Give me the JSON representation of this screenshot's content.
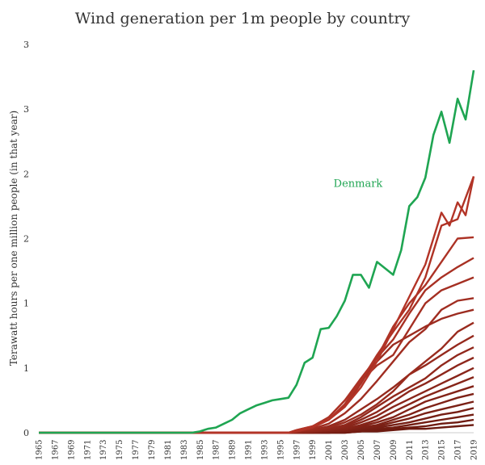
{
  "chart_data": {
    "type": "line",
    "title": "Wind generation per 1m people by country",
    "xlabel": "",
    "ylabel": "Terawatt hours per one million people (in that year)",
    "x_ticks": [
      "1965",
      "1967",
      "1969",
      "1971",
      "1973",
      "1975",
      "1977",
      "1979",
      "1981",
      "1983",
      "1985",
      "1987",
      "1989",
      "1991",
      "1993",
      "1995",
      "1997",
      "1999",
      "2001",
      "2003",
      "2005",
      "2007",
      "2009",
      "2011",
      "2013",
      "2015",
      "2017",
      "2019"
    ],
    "y_ticks": [
      "0",
      "1",
      "1",
      "2",
      "2",
      "3",
      "3"
    ],
    "xlim": [
      1965,
      2019
    ],
    "ylim": [
      0,
      3.0
    ],
    "grid": false,
    "legend": "none",
    "annotations": [
      {
        "text": "Denmark",
        "series": "Denmark"
      }
    ],
    "colors": {
      "highlight": "#1fa552",
      "others_dark": "#6b1a10",
      "others_light": "#c0392b"
    },
    "series": [
      {
        "name": "Denmark",
        "x": [
          1985,
          1986,
          1987,
          1988,
          1989,
          1990,
          1991,
          1992,
          1993,
          1994,
          1995,
          1996,
          1997,
          1998,
          1999,
          2000,
          2001,
          2002,
          2003,
          2004,
          2005,
          2006,
          2007,
          2008,
          2009,
          2010,
          2011,
          2012,
          2013,
          2014,
          2015,
          2016,
          2017,
          2018,
          2019
        ],
        "values": [
          0.01,
          0.03,
          0.04,
          0.07,
          0.1,
          0.15,
          0.18,
          0.21,
          0.23,
          0.25,
          0.26,
          0.27,
          0.37,
          0.54,
          0.58,
          0.8,
          0.81,
          0.9,
          1.02,
          1.22,
          1.22,
          1.12,
          1.32,
          1.27,
          1.22,
          1.41,
          1.75,
          1.82,
          1.97,
          2.3,
          2.48,
          2.24,
          2.58,
          2.42,
          2.8
        ]
      },
      {
        "name": "",
        "x": [
          1997,
          1999,
          2001,
          2003,
          2005,
          2007,
          2009,
          2011,
          2013,
          2015,
          2016,
          2017,
          2018,
          2019
        ],
        "values": [
          0.02,
          0.05,
          0.1,
          0.2,
          0.35,
          0.55,
          0.8,
          1.05,
          1.3,
          1.7,
          1.6,
          1.78,
          1.68,
          1.98
        ]
      },
      {
        "name": "",
        "x": [
          1997,
          1999,
          2001,
          2003,
          2005,
          2007,
          2009,
          2011,
          2013,
          2015,
          2017,
          2019
        ],
        "values": [
          0.01,
          0.04,
          0.1,
          0.22,
          0.4,
          0.6,
          0.78,
          0.95,
          1.2,
          1.6,
          1.65,
          1.98
        ]
      },
      {
        "name": "",
        "x": [
          1997,
          1999,
          2001,
          2003,
          2005,
          2007,
          2009,
          2011,
          2013,
          2015,
          2017,
          2019
        ],
        "values": [
          0.01,
          0.04,
          0.12,
          0.25,
          0.42,
          0.58,
          0.82,
          1.0,
          1.14,
          1.32,
          1.5,
          1.51
        ]
      },
      {
        "name": "",
        "x": [
          1997,
          1999,
          2001,
          2003,
          2005,
          2007,
          2009,
          2011,
          2013,
          2015,
          2017,
          2019
        ],
        "values": [
          0.02,
          0.05,
          0.1,
          0.2,
          0.38,
          0.58,
          0.72,
          0.92,
          1.1,
          1.2,
          1.28,
          1.35
        ]
      },
      {
        "name": "",
        "x": [
          1997,
          1999,
          2001,
          2003,
          2005,
          2007,
          2009,
          2011,
          2013,
          2015,
          2017,
          2019
        ],
        "values": [
          0.01,
          0.05,
          0.12,
          0.25,
          0.4,
          0.52,
          0.6,
          0.8,
          1.0,
          1.1,
          1.15,
          1.2
        ]
      },
      {
        "name": "",
        "x": [
          1997,
          1999,
          2001,
          2003,
          2005,
          2007,
          2009,
          2011,
          2013,
          2015,
          2017,
          2019
        ],
        "values": [
          0.01,
          0.03,
          0.07,
          0.15,
          0.26,
          0.4,
          0.55,
          0.7,
          0.8,
          0.95,
          1.02,
          1.04
        ]
      },
      {
        "name": "",
        "x": [
          1997,
          1999,
          2001,
          2003,
          2005,
          2007,
          2009,
          2011,
          2013,
          2015,
          2017,
          2019
        ],
        "values": [
          0.01,
          0.04,
          0.1,
          0.22,
          0.4,
          0.55,
          0.68,
          0.75,
          0.82,
          0.88,
          0.92,
          0.95
        ]
      },
      {
        "name": "",
        "x": [
          1997,
          1999,
          2001,
          2003,
          2005,
          2007,
          2009,
          2011,
          2013,
          2015,
          2017,
          2019
        ],
        "values": [
          0.01,
          0.02,
          0.04,
          0.08,
          0.14,
          0.22,
          0.32,
          0.45,
          0.55,
          0.65,
          0.78,
          0.85
        ]
      },
      {
        "name": "",
        "x": [
          1997,
          1999,
          2001,
          2003,
          2005,
          2007,
          2009,
          2011,
          2013,
          2015,
          2017,
          2019
        ],
        "values": [
          0.01,
          0.02,
          0.05,
          0.1,
          0.18,
          0.26,
          0.35,
          0.45,
          0.52,
          0.6,
          0.68,
          0.75
        ]
      },
      {
        "name": "",
        "x": [
          1997,
          1999,
          2001,
          2003,
          2005,
          2007,
          2009,
          2011,
          2013,
          2015,
          2017,
          2019
        ],
        "values": [
          0.0,
          0.01,
          0.03,
          0.06,
          0.12,
          0.2,
          0.28,
          0.35,
          0.42,
          0.52,
          0.6,
          0.66
        ]
      },
      {
        "name": "",
        "x": [
          1997,
          1999,
          2001,
          2003,
          2005,
          2007,
          2009,
          2011,
          2013,
          2015,
          2017,
          2019
        ],
        "values": [
          0.0,
          0.01,
          0.02,
          0.05,
          0.1,
          0.16,
          0.24,
          0.32,
          0.38,
          0.45,
          0.52,
          0.58
        ]
      },
      {
        "name": "",
        "x": [
          1997,
          1999,
          2001,
          2003,
          2005,
          2007,
          2009,
          2011,
          2013,
          2015,
          2017,
          2019
        ],
        "values": [
          0.0,
          0.01,
          0.02,
          0.04,
          0.08,
          0.13,
          0.2,
          0.26,
          0.32,
          0.38,
          0.44,
          0.5
        ]
      },
      {
        "name": "",
        "x": [
          1997,
          1999,
          2001,
          2003,
          2005,
          2007,
          2009,
          2011,
          2013,
          2015,
          2017,
          2019
        ],
        "values": [
          0.0,
          0.01,
          0.02,
          0.03,
          0.06,
          0.1,
          0.16,
          0.22,
          0.28,
          0.33,
          0.38,
          0.43
        ]
      },
      {
        "name": "",
        "x": [
          1997,
          1999,
          2001,
          2003,
          2005,
          2007,
          2009,
          2011,
          2013,
          2015,
          2017,
          2019
        ],
        "values": [
          0.0,
          0.0,
          0.01,
          0.02,
          0.05,
          0.08,
          0.12,
          0.18,
          0.24,
          0.28,
          0.32,
          0.36
        ]
      },
      {
        "name": "",
        "x": [
          1997,
          1999,
          2001,
          2003,
          2005,
          2007,
          2009,
          2011,
          2013,
          2015,
          2017,
          2019
        ],
        "values": [
          0.0,
          0.0,
          0.01,
          0.02,
          0.04,
          0.06,
          0.1,
          0.14,
          0.19,
          0.23,
          0.27,
          0.3
        ]
      },
      {
        "name": "",
        "x": [
          1997,
          1999,
          2001,
          2003,
          2005,
          2007,
          2009,
          2011,
          2013,
          2015,
          2017,
          2019
        ],
        "values": [
          0.0,
          0.0,
          0.01,
          0.01,
          0.03,
          0.05,
          0.08,
          0.11,
          0.15,
          0.18,
          0.21,
          0.24
        ]
      },
      {
        "name": "",
        "x": [
          1997,
          1999,
          2001,
          2003,
          2005,
          2007,
          2009,
          2011,
          2013,
          2015,
          2017,
          2019
        ],
        "values": [
          0.0,
          0.0,
          0.0,
          0.01,
          0.02,
          0.04,
          0.06,
          0.08,
          0.11,
          0.14,
          0.16,
          0.19
        ]
      },
      {
        "name": "",
        "x": [
          1997,
          1999,
          2001,
          2003,
          2005,
          2007,
          2009,
          2011,
          2013,
          2015,
          2017,
          2019
        ],
        "values": [
          0.0,
          0.0,
          0.0,
          0.01,
          0.01,
          0.03,
          0.04,
          0.06,
          0.08,
          0.1,
          0.12,
          0.14
        ]
      },
      {
        "name": "",
        "x": [
          1997,
          1999,
          2001,
          2003,
          2005,
          2007,
          2009,
          2011,
          2013,
          2015,
          2017,
          2019
        ],
        "values": [
          0.0,
          0.0,
          0.0,
          0.0,
          0.01,
          0.02,
          0.03,
          0.04,
          0.05,
          0.07,
          0.08,
          0.1
        ]
      },
      {
        "name": "",
        "x": [
          1997,
          1999,
          2001,
          2003,
          2005,
          2007,
          2009,
          2011,
          2013,
          2015,
          2017,
          2019
        ],
        "values": [
          0.0,
          0.0,
          0.0,
          0.0,
          0.01,
          0.01,
          0.02,
          0.03,
          0.03,
          0.04,
          0.05,
          0.06
        ]
      }
    ]
  }
}
